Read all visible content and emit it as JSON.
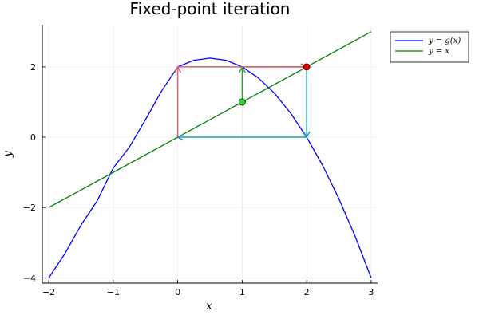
{
  "chart_data": {
    "type": "line",
    "title": "Fixed-point iteration",
    "xlabel": "x",
    "ylabel": "y",
    "xlim": [
      -2.1,
      3.1
    ],
    "ylim": [
      -4.15,
      3.2
    ],
    "xticks": [
      -2,
      -1,
      0,
      1,
      2,
      3
    ],
    "yticks": [
      -4,
      -2,
      0,
      2
    ],
    "xtick_labels": [
      "−2",
      "−1",
      "0",
      "1",
      "2",
      "3"
    ],
    "ytick_labels": [
      "−4",
      "−2",
      "0",
      "2"
    ],
    "grid": true,
    "legend_position": "outside-top-right",
    "series": [
      {
        "name": "y = g(x)",
        "color": "#0000ff",
        "x": [
          -2,
          -1.75,
          -1.5,
          -1.25,
          -1,
          -0.75,
          -0.5,
          -0.25,
          0,
          0.25,
          0.5,
          0.75,
          1,
          1.25,
          1.5,
          1.75,
          2,
          2.25,
          2.5,
          2.75,
          3
        ],
        "y": [
          -4,
          -3.3125,
          -2.5,
          -1.8125,
          -0.875,
          -0.2813,
          0.5,
          1.3125,
          2,
          2.1875,
          2.25,
          2.1875,
          2,
          1.6875,
          1.25,
          0.6875,
          0,
          -0.8125,
          -1.75,
          -2.8125,
          -4
        ]
      },
      {
        "name": "y = x",
        "color": "#008000",
        "x": [
          -2,
          3
        ],
        "y": [
          -2,
          3
        ]
      }
    ],
    "iteration_arrows": [
      {
        "from": [
          1,
          1
        ],
        "to": [
          1,
          2
        ],
        "color": "#3a9a3a"
      },
      {
        "from": [
          1,
          2
        ],
        "to": [
          2,
          2
        ],
        "color": "#d1616b"
      },
      {
        "from": [
          2,
          2
        ],
        "to": [
          2,
          0
        ],
        "color": "#1a9fb0"
      },
      {
        "from": [
          2,
          0
        ],
        "to": [
          0,
          0
        ],
        "color": "#1a9fb0"
      },
      {
        "from": [
          0,
          0
        ],
        "to": [
          0,
          2
        ],
        "color": "#d1616b"
      },
      {
        "from": [
          0,
          2
        ],
        "to": [
          2,
          2
        ],
        "color": "#d1616b"
      }
    ],
    "markers": [
      {
        "x": 1,
        "y": 1,
        "color": "#22dd22"
      },
      {
        "x": 2,
        "y": 2,
        "color": "#ee0000"
      }
    ]
  }
}
